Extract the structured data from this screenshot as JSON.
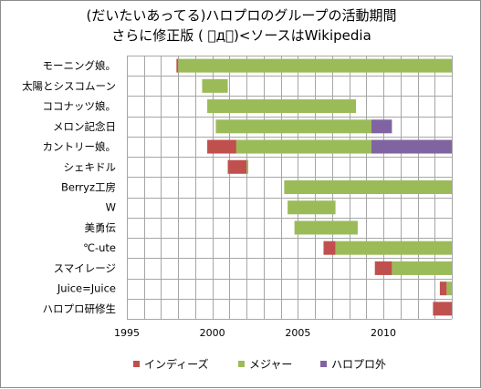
{
  "chart": {
    "title_line1": "(だいたいあってる)ハロプロのグループの活動期間",
    "title_line2": "さらに修正版 ( ゚д゚)<ソースはWikipedia"
  },
  "legend": {
    "indies_label": "インディーズ",
    "major_label": "メジャー",
    "outside_label": "ハロプロ外"
  },
  "colors": {
    "indies": "#c0504d",
    "major": "#9bbb59",
    "outside": "#8064a2",
    "grid": "#a6a6a6"
  },
  "chart_data": {
    "type": "bar",
    "orientation": "horizontal",
    "stacked": true,
    "xlim": [
      1995,
      2014
    ],
    "xticks": [
      1995,
      2000,
      2005,
      2010
    ],
    "grid": true,
    "legend_position": "bottom",
    "series_names": [
      "インディーズ",
      "メジャー",
      "ハロプロ外"
    ],
    "rows": [
      {
        "name": "モーニング娘。",
        "segments": [
          {
            "series": 0,
            "start": 1997.9,
            "end": 1998.0
          },
          {
            "series": 1,
            "start": 1998.0,
            "end": 2014.0
          }
        ]
      },
      {
        "name": "太陽とシスコムーン",
        "segments": [
          {
            "series": 1,
            "start": 1999.4,
            "end": 2000.9
          }
        ]
      },
      {
        "name": "ココナッツ娘。",
        "segments": [
          {
            "series": 1,
            "start": 1999.7,
            "end": 2008.4
          }
        ]
      },
      {
        "name": "メロン記念日",
        "segments": [
          {
            "series": 1,
            "start": 2000.2,
            "end": 2009.3
          },
          {
            "series": 2,
            "start": 2009.3,
            "end": 2010.5
          }
        ]
      },
      {
        "name": "カントリー娘。",
        "segments": [
          {
            "series": 0,
            "start": 1999.7,
            "end": 2001.4
          },
          {
            "series": 1,
            "start": 2001.4,
            "end": 2009.3
          },
          {
            "series": 2,
            "start": 2009.3,
            "end": 2014.0
          }
        ]
      },
      {
        "name": "シェキドル",
        "segments": [
          {
            "series": 0,
            "start": 2000.9,
            "end": 2002.0
          },
          {
            "series": 1,
            "start": 2002.0,
            "end": 2002.1
          }
        ]
      },
      {
        "name": "Berryz工房",
        "segments": [
          {
            "series": 1,
            "start": 2004.2,
            "end": 2014.0
          }
        ]
      },
      {
        "name": "W",
        "segments": [
          {
            "series": 1,
            "start": 2004.4,
            "end": 2007.2
          }
        ]
      },
      {
        "name": "美勇伝",
        "segments": [
          {
            "series": 1,
            "start": 2004.8,
            "end": 2008.5
          }
        ]
      },
      {
        "name": "℃-ute",
        "segments": [
          {
            "series": 0,
            "start": 2006.5,
            "end": 2007.2
          },
          {
            "series": 1,
            "start": 2007.2,
            "end": 2014.0
          }
        ]
      },
      {
        "name": "スマイレージ",
        "segments": [
          {
            "series": 0,
            "start": 2009.5,
            "end": 2010.5
          },
          {
            "series": 1,
            "start": 2010.5,
            "end": 2014.0
          }
        ]
      },
      {
        "name": "Juice=Juice",
        "segments": [
          {
            "series": 0,
            "start": 2013.3,
            "end": 2013.7
          },
          {
            "series": 1,
            "start": 2013.7,
            "end": 2014.0
          }
        ]
      },
      {
        "name": "ハロプロ研修生",
        "segments": [
          {
            "series": 0,
            "start": 2012.9,
            "end": 2014.0
          }
        ]
      }
    ]
  }
}
